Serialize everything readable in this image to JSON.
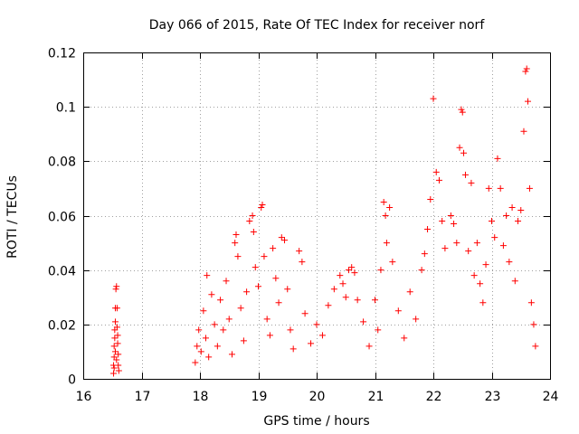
{
  "chart_data": {
    "type": "scatter",
    "title": "Day 066 of 2015, Rate Of TEC Index for receiver norf",
    "xlabel": "GPS time / hours",
    "ylabel": "ROTI / TECUs",
    "xlim": [
      16,
      24
    ],
    "ylim": [
      0,
      0.12
    ],
    "x_ticks": [
      16,
      17,
      18,
      19,
      20,
      21,
      22,
      23,
      24
    ],
    "y_ticks": [
      0,
      0.02,
      0.04,
      0.06,
      0.08,
      0.1,
      0.12
    ],
    "x_tick_labels": [
      "16",
      "17",
      "18",
      "19",
      "20",
      "21",
      "22",
      "23",
      "24"
    ],
    "y_tick_labels": [
      "0",
      "0.02",
      "0.04",
      "0.06",
      "0.08",
      "0.1",
      "0.12"
    ],
    "grid": true,
    "marker": "+",
    "series": [
      {
        "name": "ROTI",
        "color": "#ff0000",
        "points": [
          [
            16.52,
            0.002
          ],
          [
            16.52,
            0.005
          ],
          [
            16.53,
            0.008
          ],
          [
            16.53,
            0.012
          ],
          [
            16.54,
            0.015
          ],
          [
            16.54,
            0.018
          ],
          [
            16.55,
            0.021
          ],
          [
            16.55,
            0.026
          ],
          [
            16.56,
            0.033
          ],
          [
            16.57,
            0.034
          ],
          [
            16.58,
            0.026
          ],
          [
            16.58,
            0.019
          ],
          [
            16.59,
            0.013
          ],
          [
            16.6,
            0.009
          ],
          [
            16.6,
            0.005
          ],
          [
            16.61,
            0.003
          ],
          [
            16.55,
            0.01
          ],
          [
            16.57,
            0.007
          ],
          [
            16.59,
            0.016
          ],
          [
            16.53,
            0.004
          ],
          [
            17.92,
            0.006
          ],
          [
            17.95,
            0.012
          ],
          [
            17.98,
            0.018
          ],
          [
            18.02,
            0.01
          ],
          [
            18.06,
            0.025
          ],
          [
            18.1,
            0.015
          ],
          [
            18.12,
            0.038
          ],
          [
            18.15,
            0.008
          ],
          [
            18.2,
            0.031
          ],
          [
            18.25,
            0.02
          ],
          [
            18.3,
            0.012
          ],
          [
            18.35,
            0.029
          ],
          [
            18.4,
            0.018
          ],
          [
            18.45,
            0.036
          ],
          [
            18.5,
            0.022
          ],
          [
            18.55,
            0.009
          ],
          [
            18.6,
            0.05
          ],
          [
            18.62,
            0.053
          ],
          [
            18.65,
            0.045
          ],
          [
            18.7,
            0.026
          ],
          [
            18.75,
            0.014
          ],
          [
            18.8,
            0.032
          ],
          [
            18.85,
            0.058
          ],
          [
            18.9,
            0.06
          ],
          [
            18.92,
            0.054
          ],
          [
            18.95,
            0.041
          ],
          [
            19.0,
            0.034
          ],
          [
            19.05,
            0.063
          ],
          [
            19.07,
            0.064
          ],
          [
            19.1,
            0.045
          ],
          [
            19.15,
            0.022
          ],
          [
            19.2,
            0.016
          ],
          [
            19.25,
            0.048
          ],
          [
            19.3,
            0.037
          ],
          [
            19.35,
            0.028
          ],
          [
            19.4,
            0.052
          ],
          [
            19.45,
            0.051
          ],
          [
            19.5,
            0.033
          ],
          [
            19.55,
            0.018
          ],
          [
            19.6,
            0.011
          ],
          [
            19.7,
            0.047
          ],
          [
            19.75,
            0.043
          ],
          [
            19.8,
            0.024
          ],
          [
            19.9,
            0.013
          ],
          [
            20.0,
            0.02
          ],
          [
            20.1,
            0.016
          ],
          [
            20.2,
            0.027
          ],
          [
            20.3,
            0.033
          ],
          [
            20.4,
            0.038
          ],
          [
            20.45,
            0.035
          ],
          [
            20.5,
            0.03
          ],
          [
            20.55,
            0.04
          ],
          [
            20.6,
            0.041
          ],
          [
            20.65,
            0.039
          ],
          [
            20.7,
            0.029
          ],
          [
            20.8,
            0.021
          ],
          [
            20.9,
            0.012
          ],
          [
            21.0,
            0.029
          ],
          [
            21.05,
            0.018
          ],
          [
            21.1,
            0.04
          ],
          [
            21.15,
            0.065
          ],
          [
            21.18,
            0.06
          ],
          [
            21.2,
            0.05
          ],
          [
            21.25,
            0.063
          ],
          [
            21.3,
            0.043
          ],
          [
            21.4,
            0.025
          ],
          [
            21.5,
            0.015
          ],
          [
            21.6,
            0.032
          ],
          [
            21.7,
            0.022
          ],
          [
            21.8,
            0.04
          ],
          [
            21.85,
            0.046
          ],
          [
            21.9,
            0.055
          ],
          [
            21.95,
            0.066
          ],
          [
            22.0,
            0.103
          ],
          [
            22.05,
            0.076
          ],
          [
            22.1,
            0.073
          ],
          [
            22.15,
            0.058
          ],
          [
            22.2,
            0.048
          ],
          [
            22.3,
            0.06
          ],
          [
            22.35,
            0.057
          ],
          [
            22.4,
            0.05
          ],
          [
            22.45,
            0.085
          ],
          [
            22.48,
            0.099
          ],
          [
            22.5,
            0.098
          ],
          [
            22.52,
            0.083
          ],
          [
            22.55,
            0.075
          ],
          [
            22.6,
            0.047
          ],
          [
            22.65,
            0.072
          ],
          [
            22.7,
            0.038
          ],
          [
            22.75,
            0.05
          ],
          [
            22.8,
            0.035
          ],
          [
            22.85,
            0.028
          ],
          [
            22.9,
            0.042
          ],
          [
            22.95,
            0.07
          ],
          [
            23.0,
            0.058
          ],
          [
            23.05,
            0.052
          ],
          [
            23.1,
            0.081
          ],
          [
            23.15,
            0.07
          ],
          [
            23.2,
            0.049
          ],
          [
            23.25,
            0.06
          ],
          [
            23.3,
            0.043
          ],
          [
            23.35,
            0.063
          ],
          [
            23.4,
            0.036
          ],
          [
            23.45,
            0.058
          ],
          [
            23.5,
            0.062
          ],
          [
            23.55,
            0.091
          ],
          [
            23.58,
            0.113
          ],
          [
            23.6,
            0.114
          ],
          [
            23.62,
            0.102
          ],
          [
            23.65,
            0.07
          ],
          [
            23.68,
            0.028
          ],
          [
            23.72,
            0.02
          ],
          [
            23.75,
            0.012
          ]
        ]
      }
    ]
  }
}
